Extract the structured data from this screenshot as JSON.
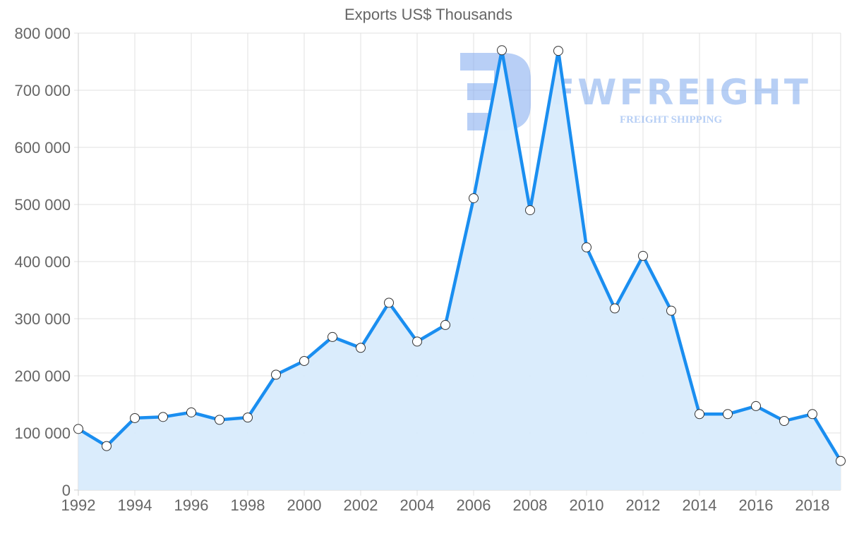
{
  "chart_data": {
    "type": "area",
    "title": "Exports US$ Thousands",
    "xlabel": "",
    "ylabel": "",
    "x": [
      1992,
      1993,
      1994,
      1995,
      1996,
      1997,
      1998,
      1999,
      2000,
      2001,
      2002,
      2003,
      2004,
      2005,
      2006,
      2007,
      2008,
      2009,
      2010,
      2011,
      2012,
      2013,
      2014,
      2015,
      2016,
      2017,
      2018,
      2019
    ],
    "series": [
      {
        "name": "Exports US$ Thousands",
        "values": [
          107000,
          77000,
          126000,
          128000,
          136000,
          123000,
          127000,
          202000,
          226000,
          268000,
          249000,
          328000,
          260000,
          289000,
          511000,
          770000,
          490000,
          769000,
          425000,
          318000,
          410000,
          314000,
          133000,
          133000,
          147000,
          121000,
          133000,
          51000
        ],
        "color": "#1a8ef0",
        "fill": "#d8ebfc"
      }
    ],
    "ylim": [
      0,
      800000
    ],
    "yticks": [
      "0",
      "100 000",
      "200 000",
      "300 000",
      "400 000",
      "500 000",
      "600 000",
      "700 000",
      "800 000"
    ],
    "xticks": [
      "1992",
      "1994",
      "1996",
      "1998",
      "2000",
      "2002",
      "2004",
      "2006",
      "2008",
      "2010",
      "2012",
      "2014",
      "2016",
      "2018"
    ],
    "grid": true,
    "legend": "none"
  },
  "watermark": {
    "brand": "FWFREIGHT",
    "tagline": "FREIGHT SHIPPING",
    "color": "#7ea8ee"
  }
}
